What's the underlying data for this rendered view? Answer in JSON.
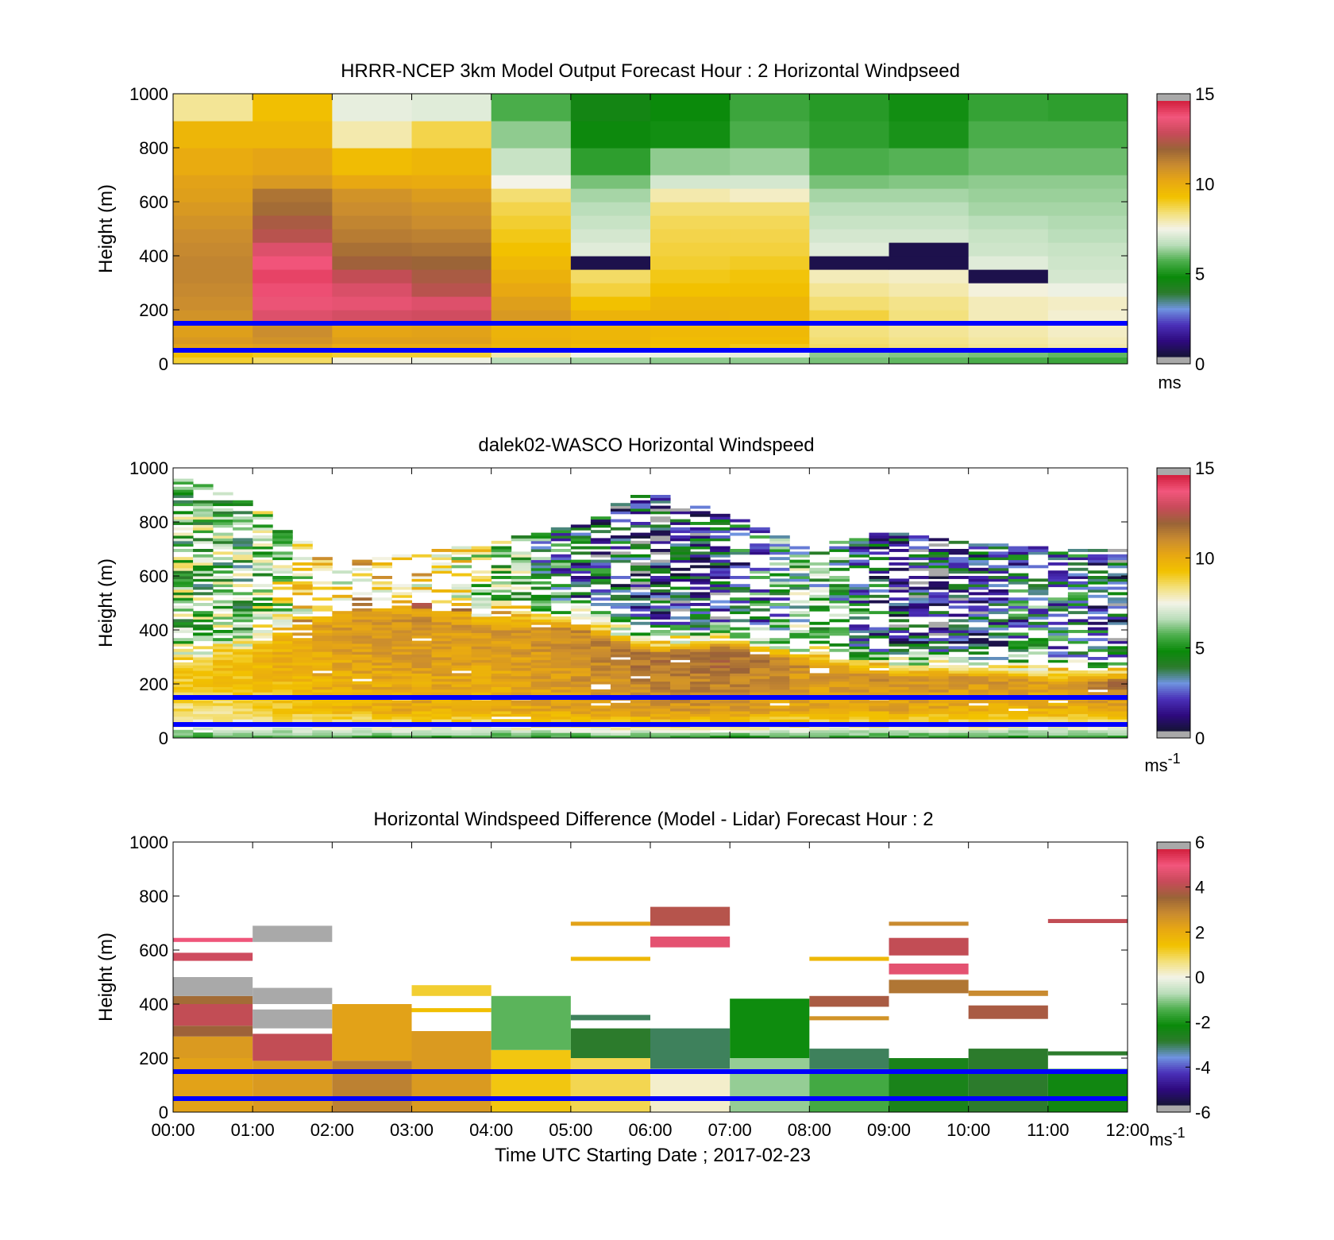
{
  "colors": {
    "windspeed_scale": [
      "#a9a9a9",
      "#151535",
      "#2e0a7e",
      "#4a2fb8",
      "#6f93df",
      "#2c7b2c",
      "#0a8a0a",
      "#4cae4c",
      "#b9ddb9",
      "#f3f3e8",
      "#f3e07a",
      "#f2c200",
      "#e8a812",
      "#c98b30",
      "#9a6437",
      "#c84a5a",
      "#f2567c",
      "#d3203e",
      "#a9a9a9"
    ],
    "difference_scale": [
      "#a9a9a9",
      "#151535",
      "#2e0a7e",
      "#4a2fb8",
      "#6f93df",
      "#2c7b2c",
      "#0a8a0a",
      "#4cae4c",
      "#b9ddb9",
      "#f3f3e8",
      "#f3e07a",
      "#f2c200",
      "#e8a812",
      "#c98b30",
      "#9a6437",
      "#c84a5a",
      "#f2567c",
      "#d3203e",
      "#a9a9a9"
    ],
    "reference_line": "#0000ff"
  },
  "chart_data": [
    {
      "type": "heatmap",
      "title": "HRRR-NCEP 3km Model Output   Forecast Hour : 2 Horizontal Windpseed",
      "ylabel": "Height (m)",
      "xlabel": "",
      "ylim": [
        0,
        1000
      ],
      "yticks": [
        "0",
        "200",
        "400",
        "600",
        "800",
        "1000"
      ],
      "xlim": [
        0,
        12
      ],
      "colorbar": {
        "ticks": [
          "0",
          "5",
          "10",
          "15"
        ],
        "range": [
          0,
          15
        ],
        "unit": "ms"
      },
      "reference_lines_m": [
        50,
        150
      ],
      "columns_hour": [
        0,
        1,
        2,
        3,
        4,
        5,
        6,
        7,
        8,
        9,
        10,
        11
      ],
      "levels_m": [
        0,
        25,
        50,
        75,
        100,
        150,
        200,
        250,
        300,
        350,
        400,
        450,
        500,
        550,
        600,
        650,
        700,
        800,
        900,
        1000
      ],
      "values": [
        [
          9.0,
          8.6,
          7.6,
          7.4,
          6.6,
          6.4,
          6.2,
          6.2,
          6.0,
          5.8,
          5.6,
          5.4
        ],
        [
          9.5,
          9.2,
          9.0,
          9.0,
          8.0,
          7.5,
          7.4,
          7.3,
          6.2,
          6.1,
          6.0,
          5.8
        ],
        [
          10.5,
          10.6,
          10.2,
          10.2,
          9.8,
          9.6,
          9.4,
          9.2,
          8.6,
          8.4,
          8.2,
          8.0
        ],
        [
          10.8,
          11.0,
          10.6,
          10.6,
          10.0,
          9.8,
          9.6,
          9.6,
          8.5,
          8.3,
          8.1,
          7.9
        ],
        [
          10.6,
          11.2,
          10.4,
          10.5,
          9.9,
          9.8,
          9.7,
          9.7,
          8.4,
          8.2,
          8.0,
          7.8
        ],
        [
          11.0,
          13.6,
          13.4,
          13.3,
          10.8,
          9.9,
          9.9,
          9.8,
          8.9,
          8.4,
          7.9,
          7.7
        ],
        [
          11.2,
          13.9,
          13.8,
          13.6,
          10.6,
          9.4,
          9.8,
          9.8,
          8.5,
          8.3,
          7.9,
          7.8
        ],
        [
          11.3,
          14.2,
          13.5,
          12.8,
          10.3,
          8.9,
          9.4,
          9.5,
          8.2,
          8.0,
          7.6,
          7.4
        ],
        [
          11.4,
          14.4,
          13.0,
          12.5,
          10.0,
          8.6,
          9.2,
          9.3,
          7.9,
          7.8,
          0.3,
          7.0
        ],
        [
          11.4,
          14.1,
          12.3,
          12.2,
          9.7,
          0.3,
          9.0,
          9.1,
          0.3,
          0.3,
          7.2,
          6.9
        ],
        [
          11.3,
          13.6,
          11.9,
          11.8,
          9.4,
          7.2,
          8.9,
          8.9,
          7.2,
          0.3,
          6.9,
          6.8
        ],
        [
          11.2,
          12.8,
          11.6,
          11.5,
          9.2,
          7.0,
          8.8,
          8.8,
          7.0,
          7.0,
          6.8,
          6.6
        ],
        [
          11.0,
          12.5,
          11.4,
          11.2,
          9.0,
          6.8,
          8.7,
          8.7,
          6.8,
          6.8,
          6.6,
          6.5
        ],
        [
          10.8,
          12.0,
          11.2,
          11.0,
          8.8,
          6.6,
          8.5,
          8.5,
          6.6,
          6.6,
          6.4,
          6.4
        ],
        [
          10.6,
          11.8,
          11.0,
          10.7,
          8.5,
          6.4,
          8.0,
          7.8,
          6.4,
          6.4,
          6.3,
          6.3
        ],
        [
          10.5,
          10.8,
          10.3,
          10.2,
          7.5,
          6.0,
          7.0,
          7.0,
          6.0,
          6.1,
          6.2,
          6.2
        ],
        [
          10.2,
          10.4,
          9.6,
          9.8,
          6.8,
          5.2,
          6.2,
          6.3,
          5.6,
          5.7,
          5.9,
          5.9
        ],
        [
          9.8,
          9.8,
          8.0,
          8.8,
          6.2,
          4.6,
          4.8,
          5.6,
          5.2,
          4.9,
          5.6,
          5.6
        ],
        [
          8.2,
          9.5,
          7.3,
          7.2,
          5.6,
          4.4,
          4.7,
          5.4,
          5.1,
          4.8,
          5.3,
          5.2
        ]
      ]
    },
    {
      "type": "heatmap",
      "title": "dalek02-WASCO  Horizontal Windspeed",
      "ylabel": "Height (m)",
      "xlabel": "",
      "ylim": [
        0,
        1000
      ],
      "yticks": [
        "0",
        "200",
        "400",
        "600",
        "800",
        "1000"
      ],
      "xlim": [
        0,
        12
      ],
      "colorbar": {
        "ticks": [
          "0",
          "5",
          "10",
          "15"
        ],
        "range": [
          0,
          15
        ],
        "unit": "ms",
        "unit_exp": "-1"
      },
      "reference_lines_m": [
        50,
        150
      ],
      "time_step_h": 0.25,
      "gate_m": 10,
      "profiles": {
        "columns_hour": [
          0.0,
          1.0,
          2.0,
          3.0,
          4.0,
          5.0,
          6.0,
          7.0,
          8.0,
          9.0,
          10.0,
          11.0,
          12.0
        ],
        "surface_speed": [
          5.5,
          5.4,
          5.6,
          5.2,
          5.4,
          5.3,
          5.5,
          5.2,
          5.4,
          5.3,
          5.5,
          5.2,
          5.4
        ],
        "speed_at_100m": [
          8.4,
          9.0,
          9.8,
          10.2,
          10.0,
          10.6,
          11.0,
          10.8,
          10.2,
          10.4,
          10.1,
          10.0,
          10.3
        ],
        "peak_speed": [
          9.2,
          9.8,
          10.8,
          11.0,
          10.8,
          11.2,
          12.0,
          12.2,
          11.0,
          11.2,
          11.0,
          10.6,
          12.4
        ],
        "peak_height_m": [
          230,
          300,
          420,
          440,
          400,
          400,
          300,
          320,
          260,
          220,
          220,
          200,
          200
        ],
        "upper_speed": [
          6.0,
          5.8,
          8.8,
          9.2,
          7.2,
          3.2,
          1.8,
          2.6,
          5.6,
          2.4,
          2.0,
          4.0,
          1.6
        ],
        "top_height_m": [
          980,
          860,
          640,
          680,
          720,
          780,
          910,
          820,
          700,
          760,
          720,
          700,
          700
        ],
        "coverage": [
          0.75,
          0.7,
          0.55,
          0.5,
          0.6,
          0.65,
          0.7,
          0.6,
          0.55,
          0.65,
          0.7,
          0.65,
          0.6
        ]
      }
    },
    {
      "type": "heatmap",
      "title": "Horizontal Windspeed Difference (Model - Lidar) Forecast Hour : 2",
      "ylabel": "Height (m)",
      "xlabel": "Time UTC  Starting Date ; 2017-02-23",
      "ylim": [
        0,
        1000
      ],
      "yticks": [
        "0",
        "200",
        "400",
        "600",
        "800",
        "1000"
      ],
      "xlim": [
        0,
        12
      ],
      "xticks": [
        "00:00",
        "01:00",
        "02:00",
        "03:00",
        "04:00",
        "05:00",
        "06:00",
        "07:00",
        "08:00",
        "09:00",
        "10:00",
        "11:00",
        "12:00"
      ],
      "colorbar": {
        "ticks": [
          "-6",
          "-4",
          "-2",
          "0",
          "2",
          "4",
          "6"
        ],
        "range": [
          -6,
          6
        ],
        "unit": "ms",
        "unit_exp": "-1"
      },
      "reference_lines_m": [
        50,
        150
      ],
      "bands": [
        {
          "t0": 0,
          "t1": 1,
          "h0": 0,
          "h1": 200,
          "v": 2.4
        },
        {
          "t0": 0,
          "t1": 1,
          "h0": 200,
          "h1": 280,
          "v": 2.6
        },
        {
          "t0": 0,
          "t1": 1,
          "h0": 280,
          "h1": 320,
          "v": 3.8
        },
        {
          "t0": 0,
          "t1": 1,
          "h0": 320,
          "h1": 400,
          "v": 4.4
        },
        {
          "t0": 0,
          "t1": 1,
          "h0": 400,
          "h1": 430,
          "v": 3.6
        },
        {
          "t0": 0,
          "t1": 1,
          "h0": 430,
          "h1": 500,
          "v": 6.0
        },
        {
          "t0": 0,
          "t1": 1,
          "h0": 560,
          "h1": 590,
          "v": 4.6
        },
        {
          "t0": 0,
          "t1": 1,
          "h0": 630,
          "h1": 645,
          "v": 5.2
        },
        {
          "t0": 1,
          "t1": 2,
          "h0": 0,
          "h1": 190,
          "v": 2.6
        },
        {
          "t0": 1,
          "t1": 2,
          "h0": 190,
          "h1": 290,
          "v": 4.4
        },
        {
          "t0": 1,
          "t1": 2,
          "h0": 310,
          "h1": 380,
          "v": 6.0
        },
        {
          "t0": 1,
          "t1": 2,
          "h0": 400,
          "h1": 460,
          "v": 6.0
        },
        {
          "t0": 1,
          "t1": 2,
          "h0": 630,
          "h1": 690,
          "v": 6.0
        },
        {
          "t0": 2,
          "t1": 3,
          "h0": 0,
          "h1": 190,
          "v": 3.2
        },
        {
          "t0": 2,
          "t1": 3,
          "h0": 190,
          "h1": 400,
          "v": 2.4
        },
        {
          "t0": 3,
          "t1": 4,
          "h0": 0,
          "h1": 300,
          "v": 2.6
        },
        {
          "t0": 3,
          "t1": 4,
          "h0": 370,
          "h1": 385,
          "v": 1.6
        },
        {
          "t0": 3,
          "t1": 4,
          "h0": 430,
          "h1": 470,
          "v": 1.2
        },
        {
          "t0": 4,
          "t1": 5,
          "h0": 0,
          "h1": 230,
          "v": 1.4
        },
        {
          "t0": 4,
          "t1": 5,
          "h0": 230,
          "h1": 430,
          "v": -1.4
        },
        {
          "t0": 5,
          "t1": 6,
          "h0": 0,
          "h1": 200,
          "v": 1.0
        },
        {
          "t0": 5,
          "t1": 6,
          "h0": 200,
          "h1": 310,
          "v": -3.0
        },
        {
          "t0": 5,
          "t1": 6,
          "h0": 340,
          "h1": 360,
          "v": -3.2
        },
        {
          "t0": 5,
          "t1": 6,
          "h0": 560,
          "h1": 575,
          "v": 1.8
        },
        {
          "t0": 5,
          "t1": 6,
          "h0": 690,
          "h1": 705,
          "v": 2.4
        },
        {
          "t0": 6,
          "t1": 7,
          "h0": 0,
          "h1": 160,
          "v": 0.2
        },
        {
          "t0": 6,
          "t1": 7,
          "h0": 160,
          "h1": 310,
          "v": -3.2
        },
        {
          "t0": 6,
          "t1": 7,
          "h0": 610,
          "h1": 650,
          "v": 5.0
        },
        {
          "t0": 6,
          "t1": 7,
          "h0": 690,
          "h1": 760,
          "v": 4.2
        },
        {
          "t0": 7,
          "t1": 8,
          "h0": 0,
          "h1": 200,
          "v": -1.0
        },
        {
          "t0": 7,
          "t1": 8,
          "h0": 200,
          "h1": 420,
          "v": -2.2
        },
        {
          "t0": 8,
          "t1": 9,
          "h0": 0,
          "h1": 160,
          "v": -1.6
        },
        {
          "t0": 8,
          "t1": 9,
          "h0": 160,
          "h1": 235,
          "v": -3.2
        },
        {
          "t0": 8,
          "t1": 9,
          "h0": 340,
          "h1": 355,
          "v": 2.8
        },
        {
          "t0": 8,
          "t1": 9,
          "h0": 390,
          "h1": 430,
          "v": 4.0
        },
        {
          "t0": 8,
          "t1": 9,
          "h0": 560,
          "h1": 575,
          "v": 1.8
        },
        {
          "t0": 9,
          "t1": 10,
          "h0": 0,
          "h1": 200,
          "v": -2.6
        },
        {
          "t0": 9,
          "t1": 10,
          "h0": 440,
          "h1": 490,
          "v": 3.4
        },
        {
          "t0": 9,
          "t1": 10,
          "h0": 510,
          "h1": 550,
          "v": 5.0
        },
        {
          "t0": 9,
          "t1": 10,
          "h0": 580,
          "h1": 645,
          "v": 4.4
        },
        {
          "t0": 9,
          "t1": 10,
          "h0": 690,
          "h1": 705,
          "v": 3.0
        },
        {
          "t0": 10,
          "t1": 11,
          "h0": 0,
          "h1": 235,
          "v": -3.0
        },
        {
          "t0": 10,
          "t1": 11,
          "h0": 345,
          "h1": 395,
          "v": 4.0
        },
        {
          "t0": 10,
          "t1": 11,
          "h0": 430,
          "h1": 450,
          "v": 3.0
        },
        {
          "t0": 11,
          "t1": 12,
          "h0": 0,
          "h1": 160,
          "v": -2.4
        },
        {
          "t0": 11,
          "t1": 12,
          "h0": 210,
          "h1": 225,
          "v": -3.0
        },
        {
          "t0": 11,
          "t1": 12,
          "h0": 700,
          "h1": 715,
          "v": 4.4
        }
      ]
    }
  ]
}
